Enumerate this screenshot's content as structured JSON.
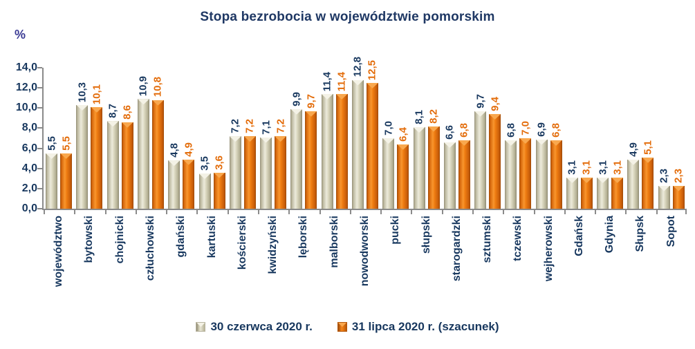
{
  "title": "Stopa bezrobocia w województwie pomorskim",
  "y_axis": {
    "unit": "%",
    "ticks": [
      "0,0",
      "2,0",
      "4,0",
      "6,0",
      "8,0",
      "10,0",
      "12,0",
      "14,0"
    ]
  },
  "legend": {
    "items": [
      {
        "label": "30 czerwca 2020 r.",
        "color": "#d6d2ba"
      },
      {
        "label": "31 lipca 2020 r. (szacunek)",
        "color": "#ef7d12"
      }
    ]
  },
  "colors": {
    "title_text": "#1f3864",
    "axis_line": "#8a8a8a",
    "series1_bar": "#d6d2ba",
    "series1_label": "#17375e",
    "series2_bar": "#ef7d12",
    "series2_label": "#e36c0a",
    "percent_label": "#3a3a94"
  },
  "chart_data": {
    "type": "bar",
    "title": "Stopa bezrobocia w województwie pomorskim",
    "xlabel": "",
    "ylabel": "%",
    "ylim": [
      0,
      14
    ],
    "ytick_step": 2,
    "grid": false,
    "legend_position": "bottom",
    "categories": [
      "województwo",
      "bytowski",
      "chojnicki",
      "człuchowski",
      "gdański",
      "kartuski",
      "kościerski",
      "kwidzyński",
      "lęborski",
      "malborski",
      "nowodworski",
      "pucki",
      "słupski",
      "starogardzki",
      "sztumski",
      "tczewski",
      "wejherowski",
      "Gdańsk",
      "Gdynia",
      "Słupsk",
      "Sopot"
    ],
    "series": [
      {
        "name": "30 czerwca 2020 r.",
        "values": [
          5.5,
          10.3,
          8.7,
          10.9,
          4.8,
          3.5,
          7.2,
          7.1,
          9.9,
          11.4,
          12.8,
          7.0,
          8.1,
          6.6,
          9.7,
          6.8,
          6.9,
          3.1,
          3.1,
          4.9,
          2.3
        ],
        "labels": [
          "5,5",
          "10,3",
          "8,7",
          "10,9",
          "4,8",
          "3,5",
          "7,2",
          "7,1",
          "9,9",
          "11,4",
          "12,8",
          "7,0",
          "8,1",
          "6,6",
          "9,7",
          "6,8",
          "6,9",
          "3,1",
          "3,1",
          "4,9",
          "2,3"
        ]
      },
      {
        "name": "31 lipca 2020 r. (szacunek)",
        "values": [
          5.5,
          10.1,
          8.6,
          10.8,
          4.9,
          3.6,
          7.2,
          7.2,
          9.7,
          11.4,
          12.5,
          6.4,
          8.2,
          6.8,
          9.4,
          7.0,
          6.8,
          3.1,
          3.1,
          5.1,
          2.3
        ],
        "labels": [
          "5,5",
          "10,1",
          "8,6",
          "10,8",
          "4,9",
          "3,6",
          "7,2",
          "7,2",
          "9,7",
          "11,4",
          "12,5",
          "6,4",
          "8,2",
          "6,8",
          "9,4",
          "7,0",
          "6,8",
          "3,1",
          "3,1",
          "5,1",
          "2,3"
        ]
      }
    ]
  }
}
